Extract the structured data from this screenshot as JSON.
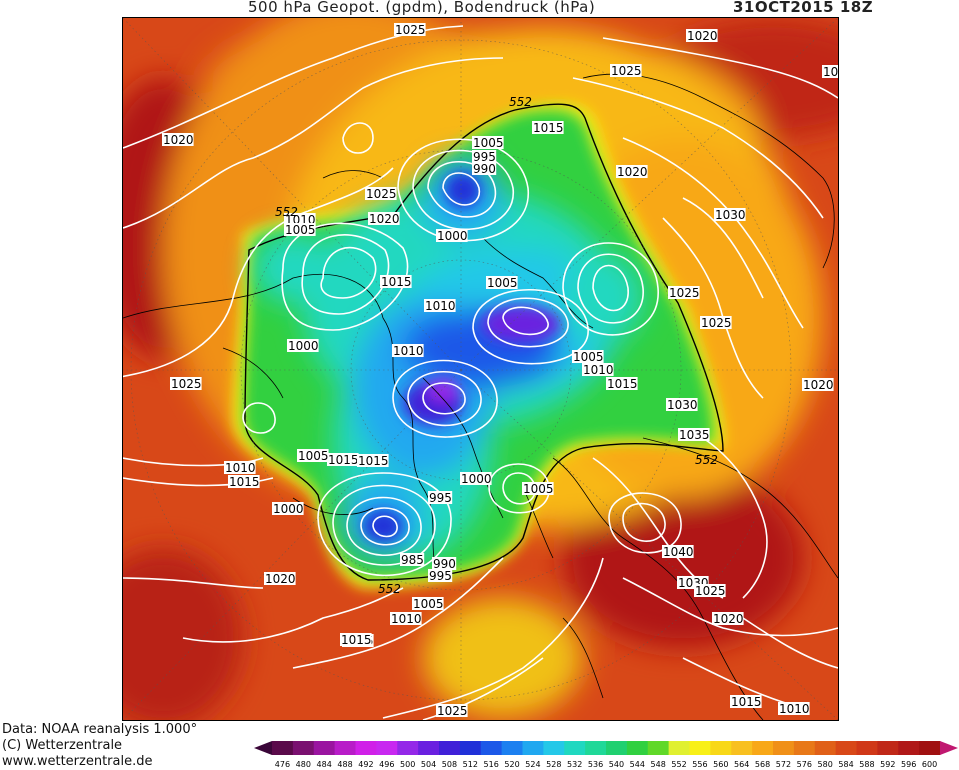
{
  "header": {
    "title": "500 hPa Geopot. (gpdm), Bodendruck (hPa)",
    "date": "31OCT2015 18Z"
  },
  "footer": {
    "line1": "Data: NOAA reanalysis 1.000°",
    "line2": "(C) Wetterzentrale",
    "line3": "www.wetterzentrale.de"
  },
  "colorbar": {
    "labels": [
      "476",
      "480",
      "484",
      "488",
      "492",
      "496",
      "500",
      "504",
      "508",
      "512",
      "516",
      "520",
      "524",
      "528",
      "532",
      "536",
      "540",
      "544",
      "548",
      "552",
      "556",
      "560",
      "564",
      "568",
      "572",
      "576",
      "580",
      "584",
      "588",
      "592",
      "596",
      "600"
    ],
    "colors": [
      "#5a0a4a",
      "#7a1070",
      "#9a14a0",
      "#b81cc8",
      "#d020e8",
      "#c828f0",
      "#9428e8",
      "#6a20e0",
      "#4020d8",
      "#2030d8",
      "#1c58e8",
      "#1c80f0",
      "#20a8f0",
      "#24c8e8",
      "#20d8c0",
      "#20d898",
      "#20d070",
      "#30d040",
      "#60d828",
      "#e0f030",
      "#f8f018",
      "#f8d818",
      "#f8c020",
      "#f8a818",
      "#f09018",
      "#e87818",
      "#e06018",
      "#d84818",
      "#d03818",
      "#c02818",
      "#b01818",
      "#a01010"
    ],
    "arrow_left_color": "#3a0638",
    "arrow_right_color": "#c01870"
  },
  "map": {
    "labels_1025": "1025",
    "pressure_labels": [
      "1025",
      "1020",
      "1025",
      "1020",
      "1015",
      "1005",
      "995",
      "990",
      "1025",
      "1020",
      "1030",
      "1010",
      "1005",
      "1020",
      "1000",
      "1015",
      "1010",
      "1005",
      "1025",
      "1025",
      "1010",
      "1005",
      "1000",
      "1010",
      "1015",
      "1025",
      "1000",
      "1015",
      "1005",
      "1015",
      "1030",
      "1020",
      "1035",
      "1010",
      "1005",
      "1015",
      "1000",
      "995",
      "985",
      "990",
      "995",
      "1040",
      "1030",
      "1025",
      "1020",
      "1015",
      "1020",
      "1010",
      "1015",
      "1005",
      "1025",
      "1015",
      "1010",
      "10"
    ],
    "contour_552_label": "552"
  }
}
